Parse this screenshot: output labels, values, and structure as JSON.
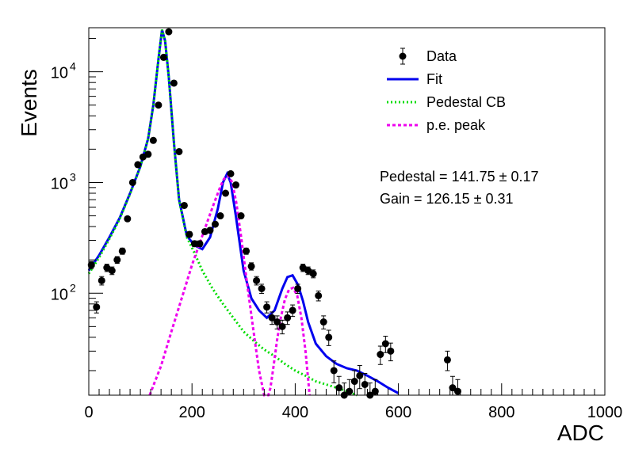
{
  "chart_data": {
    "type": "scatter",
    "xlabel": "ADC",
    "ylabel": "Events",
    "xlim": [
      0,
      1000
    ],
    "ylim": [
      12,
      25000
    ],
    "yscale": "log",
    "x_ticks": [
      0,
      200,
      400,
      600,
      800,
      1000
    ],
    "x_tick_labels": [
      "0",
      "200",
      "400",
      "600",
      "800",
      "1000"
    ],
    "y_ticks": [
      100,
      1000,
      10000
    ],
    "y_tick_labels": [
      "10",
      "10",
      "10"
    ],
    "y_tick_exponents": [
      "2",
      "3",
      "4"
    ],
    "grid": false,
    "legend_position": "top-right",
    "legend": [
      {
        "label": "Data",
        "style": "marker",
        "color": "#000000"
      },
      {
        "label": "Fit",
        "style": "solid",
        "color": "#0000ee"
      },
      {
        "label": "Pedestal CB",
        "style": "dotted",
        "color": "#00dd00"
      },
      {
        "label": "p.e. peak",
        "style": "dashed",
        "color": "#ee00ee"
      }
    ],
    "annotations": [
      {
        "label": "Pedestal = 141.75",
        "pm": "±",
        "value": "0.17"
      },
      {
        "label": "Gain = 126.15",
        "pm": "±",
        "value": "0.31"
      }
    ],
    "series": [
      {
        "name": "Data",
        "style": "points",
        "color": "#000000",
        "x": [
          5,
          15,
          25,
          35,
          45,
          55,
          65,
          75,
          85,
          95,
          105,
          115,
          125,
          135,
          145,
          155,
          165,
          175,
          185,
          195,
          205,
          215,
          225,
          235,
          245,
          255,
          265,
          275,
          285,
          295,
          305,
          315,
          325,
          335,
          345,
          355,
          365,
          375,
          385,
          395,
          405,
          415,
          425,
          435,
          445,
          455,
          465,
          475,
          485,
          495,
          505,
          515,
          525,
          535,
          545,
          555,
          565,
          575,
          585,
          695,
          705,
          715
        ],
        "y": [
          180,
          75,
          130,
          170,
          160,
          200,
          240,
          470,
          1000,
          1450,
          1700,
          1800,
          2400,
          5000,
          13500,
          23000,
          7900,
          1900,
          620,
          340,
          280,
          280,
          360,
          370,
          420,
          500,
          800,
          1200,
          950,
          500,
          240,
          175,
          130,
          110,
          75,
          60,
          55,
          50,
          60,
          70,
          110,
          170,
          160,
          150,
          95,
          55,
          40,
          20,
          14,
          12,
          13,
          16,
          18,
          15,
          12,
          13,
          28,
          35,
          30,
          25,
          14,
          13
        ]
      },
      {
        "name": "Fit",
        "style": "solid",
        "color": "#0000ee",
        "x": [
          0,
          20,
          40,
          60,
          80,
          100,
          115,
          125,
          135,
          142,
          148,
          155,
          165,
          175,
          190,
          205,
          220,
          235,
          250,
          260,
          268,
          275,
          285,
          300,
          315,
          330,
          345,
          360,
          375,
          385,
          395,
          405,
          415,
          425,
          440,
          460,
          480,
          500,
          520,
          540,
          560,
          580,
          600
        ],
        "y": [
          160,
          220,
          320,
          480,
          800,
          1400,
          2500,
          5000,
          13000,
          24000,
          19000,
          9000,
          2300,
          700,
          330,
          270,
          250,
          320,
          580,
          1000,
          1200,
          1000,
          500,
          160,
          90,
          70,
          60,
          70,
          110,
          140,
          145,
          120,
          85,
          55,
          35,
          27,
          23,
          21,
          20,
          18,
          16,
          14,
          12.5
        ]
      },
      {
        "name": "Pedestal CB",
        "style": "dotted",
        "color": "#00dd00",
        "x": [
          0,
          20,
          40,
          60,
          80,
          100,
          115,
          125,
          135,
          142,
          148,
          155,
          165,
          175,
          190,
          205,
          220,
          240,
          260,
          280,
          300,
          320,
          340,
          360,
          380,
          400,
          420,
          440,
          460,
          480,
          500,
          520
        ],
        "y": [
          150,
          210,
          310,
          470,
          790,
          1390,
          2480,
          4980,
          12980,
          24000,
          19000,
          9000,
          2300,
          690,
          320,
          230,
          160,
          110,
          80,
          60,
          45,
          37,
          31,
          27,
          23,
          20,
          18,
          16,
          15,
          14,
          13,
          12
        ]
      },
      {
        "name": "p.e. peak",
        "style": "dashed",
        "color": "#ee00ee",
        "x": [
          118,
          140,
          160,
          180,
          200,
          220,
          240,
          255,
          262,
          270,
          278,
          286,
          295,
          305,
          318,
          330,
          340,
          348,
          352,
          358,
          365,
          372,
          380,
          388,
          396,
          404,
          412,
          420,
          428
        ],
        "y": [
          12,
          22,
          45,
          90,
          180,
          330,
          600,
          920,
          1080,
          1150,
          1000,
          650,
          330,
          140,
          50,
          20,
          12,
          12,
          14,
          22,
          38,
          60,
          88,
          108,
          112,
          95,
          60,
          30,
          12
        ]
      }
    ]
  }
}
